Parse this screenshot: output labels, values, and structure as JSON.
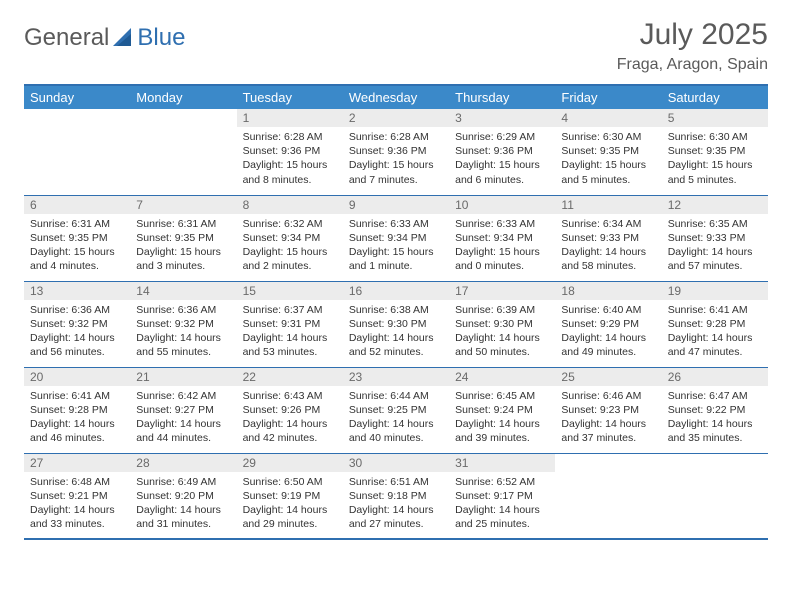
{
  "brand": {
    "name1": "General",
    "name2": "Blue"
  },
  "title": {
    "month": "July 2025",
    "location": "Fraga, Aragon, Spain"
  },
  "header_bg": "#3b89c9",
  "rule_color": "#2f6fb0",
  "daynum_bg": "#ececec",
  "text_color": "#333333",
  "weekdays": [
    "Sunday",
    "Monday",
    "Tuesday",
    "Wednesday",
    "Thursday",
    "Friday",
    "Saturday"
  ],
  "weeks": [
    [
      null,
      null,
      {
        "n": "1",
        "sr": "Sunrise: 6:28 AM",
        "ss": "Sunset: 9:36 PM",
        "dl": "Daylight: 15 hours and 8 minutes."
      },
      {
        "n": "2",
        "sr": "Sunrise: 6:28 AM",
        "ss": "Sunset: 9:36 PM",
        "dl": "Daylight: 15 hours and 7 minutes."
      },
      {
        "n": "3",
        "sr": "Sunrise: 6:29 AM",
        "ss": "Sunset: 9:36 PM",
        "dl": "Daylight: 15 hours and 6 minutes."
      },
      {
        "n": "4",
        "sr": "Sunrise: 6:30 AM",
        "ss": "Sunset: 9:35 PM",
        "dl": "Daylight: 15 hours and 5 minutes."
      },
      {
        "n": "5",
        "sr": "Sunrise: 6:30 AM",
        "ss": "Sunset: 9:35 PM",
        "dl": "Daylight: 15 hours and 5 minutes."
      }
    ],
    [
      {
        "n": "6",
        "sr": "Sunrise: 6:31 AM",
        "ss": "Sunset: 9:35 PM",
        "dl": "Daylight: 15 hours and 4 minutes."
      },
      {
        "n": "7",
        "sr": "Sunrise: 6:31 AM",
        "ss": "Sunset: 9:35 PM",
        "dl": "Daylight: 15 hours and 3 minutes."
      },
      {
        "n": "8",
        "sr": "Sunrise: 6:32 AM",
        "ss": "Sunset: 9:34 PM",
        "dl": "Daylight: 15 hours and 2 minutes."
      },
      {
        "n": "9",
        "sr": "Sunrise: 6:33 AM",
        "ss": "Sunset: 9:34 PM",
        "dl": "Daylight: 15 hours and 1 minute."
      },
      {
        "n": "10",
        "sr": "Sunrise: 6:33 AM",
        "ss": "Sunset: 9:34 PM",
        "dl": "Daylight: 15 hours and 0 minutes."
      },
      {
        "n": "11",
        "sr": "Sunrise: 6:34 AM",
        "ss": "Sunset: 9:33 PM",
        "dl": "Daylight: 14 hours and 58 minutes."
      },
      {
        "n": "12",
        "sr": "Sunrise: 6:35 AM",
        "ss": "Sunset: 9:33 PM",
        "dl": "Daylight: 14 hours and 57 minutes."
      }
    ],
    [
      {
        "n": "13",
        "sr": "Sunrise: 6:36 AM",
        "ss": "Sunset: 9:32 PM",
        "dl": "Daylight: 14 hours and 56 minutes."
      },
      {
        "n": "14",
        "sr": "Sunrise: 6:36 AM",
        "ss": "Sunset: 9:32 PM",
        "dl": "Daylight: 14 hours and 55 minutes."
      },
      {
        "n": "15",
        "sr": "Sunrise: 6:37 AM",
        "ss": "Sunset: 9:31 PM",
        "dl": "Daylight: 14 hours and 53 minutes."
      },
      {
        "n": "16",
        "sr": "Sunrise: 6:38 AM",
        "ss": "Sunset: 9:30 PM",
        "dl": "Daylight: 14 hours and 52 minutes."
      },
      {
        "n": "17",
        "sr": "Sunrise: 6:39 AM",
        "ss": "Sunset: 9:30 PM",
        "dl": "Daylight: 14 hours and 50 minutes."
      },
      {
        "n": "18",
        "sr": "Sunrise: 6:40 AM",
        "ss": "Sunset: 9:29 PM",
        "dl": "Daylight: 14 hours and 49 minutes."
      },
      {
        "n": "19",
        "sr": "Sunrise: 6:41 AM",
        "ss": "Sunset: 9:28 PM",
        "dl": "Daylight: 14 hours and 47 minutes."
      }
    ],
    [
      {
        "n": "20",
        "sr": "Sunrise: 6:41 AM",
        "ss": "Sunset: 9:28 PM",
        "dl": "Daylight: 14 hours and 46 minutes."
      },
      {
        "n": "21",
        "sr": "Sunrise: 6:42 AM",
        "ss": "Sunset: 9:27 PM",
        "dl": "Daylight: 14 hours and 44 minutes."
      },
      {
        "n": "22",
        "sr": "Sunrise: 6:43 AM",
        "ss": "Sunset: 9:26 PM",
        "dl": "Daylight: 14 hours and 42 minutes."
      },
      {
        "n": "23",
        "sr": "Sunrise: 6:44 AM",
        "ss": "Sunset: 9:25 PM",
        "dl": "Daylight: 14 hours and 40 minutes."
      },
      {
        "n": "24",
        "sr": "Sunrise: 6:45 AM",
        "ss": "Sunset: 9:24 PM",
        "dl": "Daylight: 14 hours and 39 minutes."
      },
      {
        "n": "25",
        "sr": "Sunrise: 6:46 AM",
        "ss": "Sunset: 9:23 PM",
        "dl": "Daylight: 14 hours and 37 minutes."
      },
      {
        "n": "26",
        "sr": "Sunrise: 6:47 AM",
        "ss": "Sunset: 9:22 PM",
        "dl": "Daylight: 14 hours and 35 minutes."
      }
    ],
    [
      {
        "n": "27",
        "sr": "Sunrise: 6:48 AM",
        "ss": "Sunset: 9:21 PM",
        "dl": "Daylight: 14 hours and 33 minutes."
      },
      {
        "n": "28",
        "sr": "Sunrise: 6:49 AM",
        "ss": "Sunset: 9:20 PM",
        "dl": "Daylight: 14 hours and 31 minutes."
      },
      {
        "n": "29",
        "sr": "Sunrise: 6:50 AM",
        "ss": "Sunset: 9:19 PM",
        "dl": "Daylight: 14 hours and 29 minutes."
      },
      {
        "n": "30",
        "sr": "Sunrise: 6:51 AM",
        "ss": "Sunset: 9:18 PM",
        "dl": "Daylight: 14 hours and 27 minutes."
      },
      {
        "n": "31",
        "sr": "Sunrise: 6:52 AM",
        "ss": "Sunset: 9:17 PM",
        "dl": "Daylight: 14 hours and 25 minutes."
      },
      null,
      null
    ]
  ]
}
